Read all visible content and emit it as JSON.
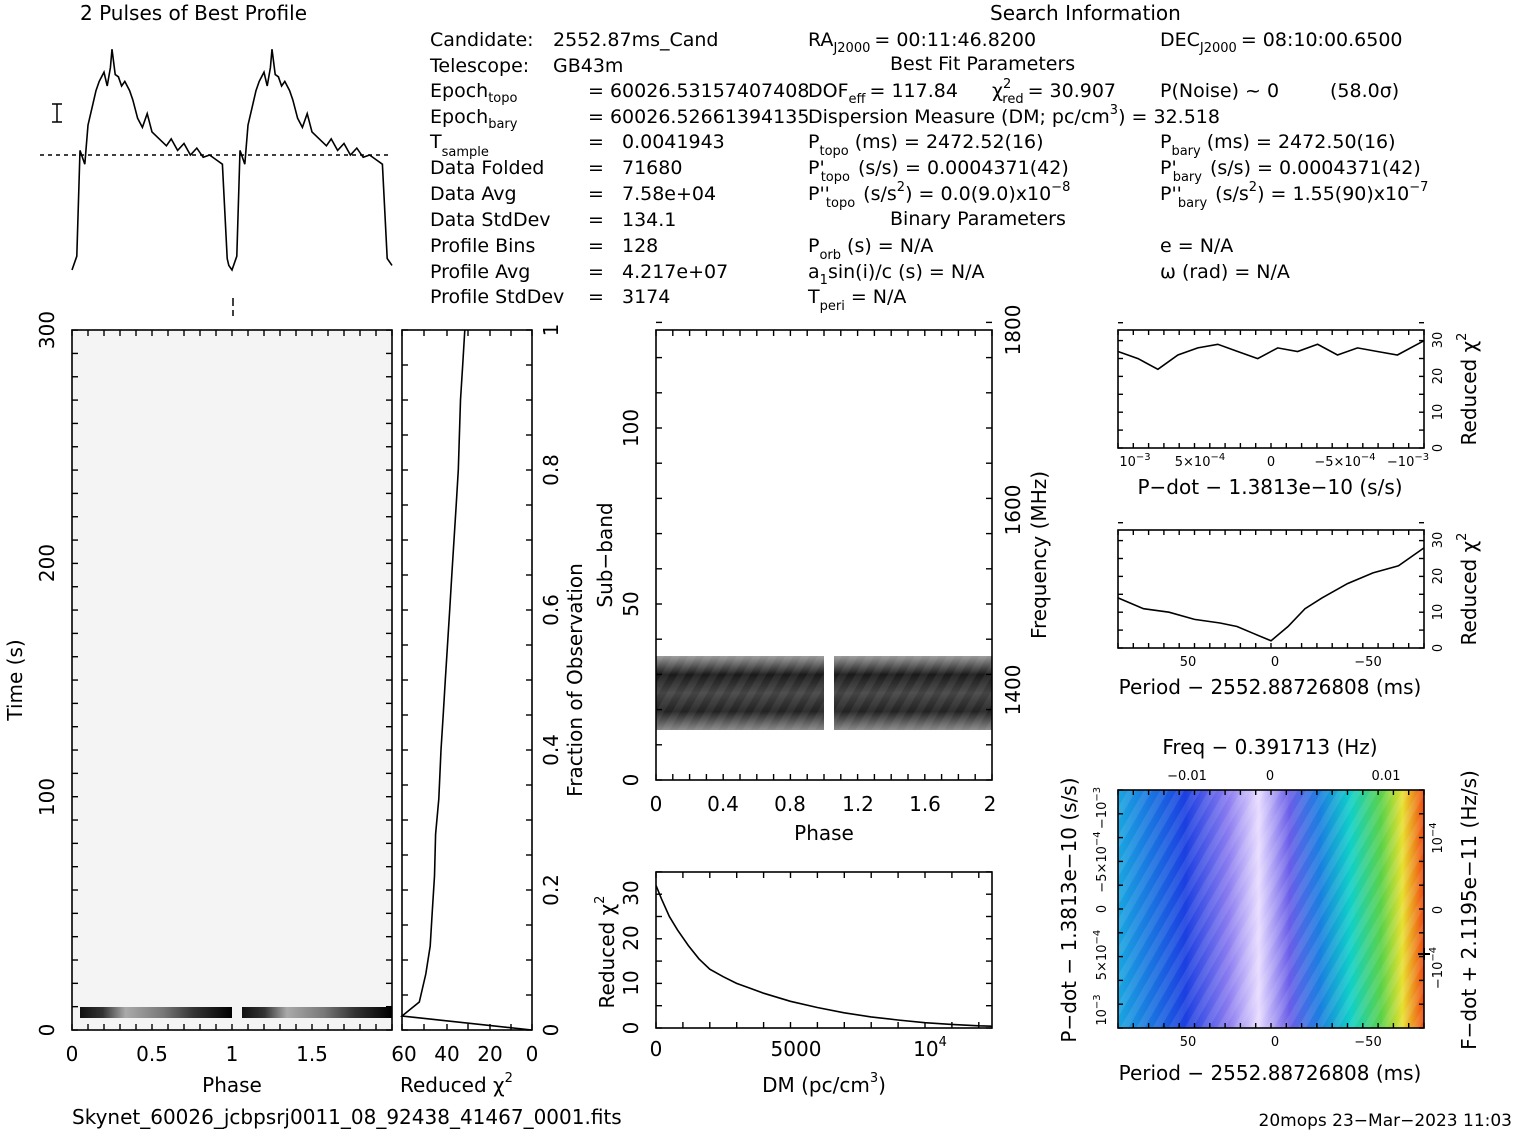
{
  "title_profile": "2 Pulses of Best Profile",
  "title_search": "Search Information",
  "footer_file": "Skynet_60026_jcbpsrj0011_08_92438_41467_0001.fits",
  "footer_stamp": "20mops 23−Mar−2023 11:03",
  "info": {
    "candidate": {
      "label": "Candidate:",
      "value": "2552.87ms_Cand"
    },
    "telescope": {
      "label": "Telescope:",
      "value": "GB43m"
    },
    "epoch_topo": {
      "label": "Epoch",
      "sub": "topo",
      "value": "= 60026.53157407408"
    },
    "epoch_bary": {
      "label": "Epoch",
      "sub": "bary",
      "value": "= 60026.52661394135"
    },
    "t_sample": {
      "label": "T",
      "sub": "sample",
      "value": "0.0041943"
    },
    "data_folded": {
      "label": "Data Folded",
      "value": "71680"
    },
    "data_avg": {
      "label": "Data Avg",
      "value": "7.58e+04"
    },
    "data_stddev": {
      "label": "Data StdDev",
      "value": "134.1"
    },
    "profile_bins": {
      "label": "Profile Bins",
      "value": "128"
    },
    "profile_avg": {
      "label": "Profile Avg",
      "value": "4.217e+07"
    },
    "profile_stddev": {
      "label": "Profile StdDev",
      "value": "3174"
    },
    "eq": "="
  },
  "search": {
    "ra_label": "RA",
    "ra_sub": "J2000",
    "ra_value": "= 00:11:46.8200",
    "dec_label": "DEC",
    "dec_sub": "J2000",
    "dec_value": "= 08:10:00.6500",
    "best_fit_title": "Best Fit Parameters",
    "dof_label": "DOF",
    "dof_sub": "eff",
    "dof_value": "= 117.84",
    "chi_label": "χ",
    "chi_sup": "2",
    "chi_sub": "red",
    "chi_value": "= 30.907",
    "pnoise": "P(Noise) ~ 0",
    "sigma": "(58.0σ)",
    "dm_label": "Dispersion Measure (DM; pc/cm",
    "dm_sup": "3",
    "dm_value": ") = 32.518",
    "ptopo_label": "P",
    "ptopo_sub": "topo",
    "ptopo_value": "(ms) =  2472.52(16)",
    "pbary_label": "P",
    "pbary_sub": "bary",
    "pbary_value": "(ms) =  2472.50(16)",
    "pdtopo_label": "P'",
    "pdtopo_sub": "topo",
    "pdtopo_value": "(s/s) =  0.0004371(42)",
    "pdbary_label": "P'",
    "pdbary_sub": "bary",
    "pdbary_value": "(s/s) =  0.0004371(42)",
    "pddtopo_label": "P''",
    "pddtopo_sub": "topo",
    "pddtopo_value": "(s/s",
    "pddtopo_sup": "2",
    "pddtopo_value2": ") = 0.0(9.0)x10",
    "pddtopo_exp": "−8",
    "pddbary_label": "P''",
    "pddbary_sub": "bary",
    "pddbary_value": "(s/s",
    "pddbary_sup": "2",
    "pddbary_value2": ") =  1.55(90)x10",
    "pddbary_exp": "−7",
    "binary_title": "Binary Parameters",
    "porb_label": "P",
    "porb_sub": "orb",
    "porb_value": "(s) = N/A",
    "e_value": "e = N/A",
    "asini_label": "a",
    "asini_sub": "1",
    "asini_value": "sin(i)/c (s) = N/A",
    "omega_value": "ω (rad) = N/A",
    "tperi_label": "T",
    "tperi_sub": "peri",
    "tperi_value": "= N/A"
  },
  "chart_data": [
    {
      "type": "line",
      "name": "profile",
      "title": "2 Pulses of Best Profile",
      "x": [
        0.0,
        0.03,
        0.05,
        0.08,
        0.1,
        0.13,
        0.15,
        0.17,
        0.2,
        0.22,
        0.24,
        0.25,
        0.27,
        0.29,
        0.31,
        0.33,
        0.36,
        0.38,
        0.41,
        0.44,
        0.47,
        0.5,
        0.53,
        0.56,
        0.59,
        0.62,
        0.66,
        0.7,
        0.74,
        0.78,
        0.82,
        0.86,
        0.9,
        0.94,
        0.97,
        0.98,
        1.0,
        1.03,
        1.05,
        1.08,
        1.1,
        1.13,
        1.15,
        1.17,
        1.2,
        1.22,
        1.24,
        1.25,
        1.27,
        1.29,
        1.31,
        1.33,
        1.36,
        1.38,
        1.41,
        1.44,
        1.47,
        1.5,
        1.53,
        1.56,
        1.59,
        1.62,
        1.66,
        1.7,
        1.74,
        1.78,
        1.82,
        1.86,
        1.9,
        1.94,
        1.97,
        2.0
      ],
      "y": [
        0.0,
        0.06,
        0.52,
        0.46,
        0.63,
        0.72,
        0.78,
        0.82,
        0.86,
        0.8,
        0.88,
        0.96,
        0.85,
        0.84,
        0.8,
        0.82,
        0.78,
        0.74,
        0.66,
        0.62,
        0.68,
        0.6,
        0.58,
        0.56,
        0.54,
        0.57,
        0.52,
        0.55,
        0.5,
        0.53,
        0.49,
        0.5,
        0.48,
        0.46,
        0.05,
        0.02,
        0.0,
        0.06,
        0.52,
        0.46,
        0.63,
        0.72,
        0.78,
        0.82,
        0.86,
        0.8,
        0.88,
        0.96,
        0.85,
        0.84,
        0.8,
        0.82,
        0.78,
        0.74,
        0.66,
        0.62,
        0.68,
        0.6,
        0.58,
        0.56,
        0.54,
        0.57,
        0.52,
        0.55,
        0.5,
        0.53,
        0.49,
        0.5,
        0.48,
        0.46,
        0.05,
        0.02
      ],
      "baseline": 0.5
    },
    {
      "type": "heatmap",
      "name": "time-phase",
      "xlabel": "Phase",
      "ylabel": "Time (s)",
      "xlim": [
        0,
        2
      ],
      "ylim": [
        0,
        300
      ],
      "xticks": [
        "0",
        "0.5",
        "1",
        "1.5"
      ],
      "yticks": [
        "0",
        "100",
        "200",
        "300"
      ]
    },
    {
      "type": "line",
      "name": "chi2-vs-time",
      "xlabel": "Reduced χ",
      "xlabel_sup": "2",
      "ylabel": "Fraction of Observation",
      "xlim": [
        60,
        0
      ],
      "ylim": [
        0,
        1
      ],
      "xticks": [
        "60",
        "40",
        "20",
        "0"
      ],
      "yticks": [
        "0",
        "0.2",
        "0.4",
        "0.6",
        "0.8",
        "1"
      ],
      "x": [
        0,
        60,
        52,
        49,
        47,
        46,
        45,
        44.5,
        43,
        42,
        41,
        40,
        39,
        38,
        37,
        36,
        35,
        34,
        33.5,
        33,
        32,
        31
      ],
      "y": [
        0.0,
        0.02,
        0.04,
        0.08,
        0.12,
        0.17,
        0.22,
        0.28,
        0.33,
        0.4,
        0.45,
        0.5,
        0.55,
        0.6,
        0.65,
        0.7,
        0.75,
        0.8,
        0.85,
        0.9,
        0.95,
        1.0
      ]
    },
    {
      "type": "heatmap",
      "name": "subband-phase",
      "xlabel": "Phase",
      "ylabel": "Sub−band",
      "ylabel_right": "Frequency (MHz)",
      "xlim": [
        0,
        2
      ],
      "ylim": [
        0,
        128
      ],
      "xticks": [
        "0",
        "0.4",
        "0.8",
        "1.2",
        "1.6",
        "2"
      ],
      "yticks": [
        "0",
        "50",
        "100"
      ],
      "freq_ticks": [
        "1400",
        "1600",
        "1800"
      ],
      "freq_values": [
        1400,
        1600,
        1800
      ],
      "band_subbands": [
        15,
        35
      ]
    },
    {
      "type": "line",
      "name": "chi2-vs-dm",
      "xlabel": "DM (pc/cm",
      "xlabel_sup": "3",
      "xlabel_end": ")",
      "ylabel": "Reduced χ",
      "ylabel_sup": "2",
      "xlim": [
        0,
        12500
      ],
      "ylim": [
        0,
        35
      ],
      "xticks": [
        "0",
        "5000",
        "10"
      ],
      "xtick_exp": "4",
      "yticks": [
        "0",
        "10",
        "20",
        "30"
      ],
      "x": [
        0,
        200,
        500,
        800,
        1200,
        1600,
        2000,
        2500,
        3000,
        3500,
        4000,
        5000,
        6000,
        7000,
        8000,
        9000,
        10000,
        11000,
        12000,
        12500
      ],
      "y": [
        32,
        29,
        25,
        22,
        18.5,
        15.5,
        13.2,
        11.5,
        10,
        8.9,
        7.8,
        6,
        4.6,
        3.4,
        2.5,
        1.8,
        1.2,
        0.8,
        0.5,
        0.4
      ]
    },
    {
      "type": "line",
      "name": "chi2-vs-pdot",
      "xlabel": "P−dot − 1.3813e−10 (s/s)",
      "ylabel": "Reduced χ",
      "ylabel_sup": "2",
      "xlim": [
        0.00115,
        -0.00115
      ],
      "ylim": [
        0,
        33
      ],
      "xticks": [
        "10",
        "5×10",
        "0",
        "−5×10",
        "−10"
      ],
      "xtick_exps": [
        "−3",
        "−4",
        "",
        "−4",
        "−3"
      ],
      "yticks": [
        "0",
        "10",
        "20",
        "30"
      ],
      "x": [
        0.00115,
        0.001,
        0.00085,
        0.0007,
        0.00055,
        0.0004,
        0.00025,
        0.0001,
        -5e-05,
        -0.0002,
        -0.00035,
        -0.0005,
        -0.00065,
        -0.0008,
        -0.00095,
        -0.00115
      ],
      "y": [
        27,
        25,
        22,
        26,
        28,
        29,
        27,
        25,
        28,
        27,
        29,
        26,
        28,
        27,
        26,
        30
      ]
    },
    {
      "type": "line",
      "name": "chi2-vs-period",
      "xlabel": "Period − 2552.88726808 (ms)",
      "ylabel": "Reduced χ",
      "ylabel_sup": "2",
      "xlim": [
        90,
        -90
      ],
      "ylim": [
        0,
        33
      ],
      "xticks": [
        "50",
        "0",
        "−50"
      ],
      "yticks": [
        "0",
        "10",
        "20",
        "30"
      ],
      "x": [
        90,
        75,
        60,
        45,
        30,
        20,
        10,
        0,
        -10,
        -20,
        -30,
        -45,
        -60,
        -75,
        -90
      ],
      "y": [
        14,
        11,
        10,
        8,
        7,
        6,
        4,
        2,
        6,
        11,
        14,
        18,
        21,
        23,
        28
      ]
    },
    {
      "type": "heatmap",
      "name": "period-pdot",
      "xlabel": "Period − 2552.88726808 (ms)",
      "xlabel_top": "Freq − 0.391713 (Hz)",
      "ylabel": "P−dot − 1.3813e−10 (s/s)",
      "ylabel_right": "F−dot + 2.1195e−11 (Hz/s)",
      "xticks": [
        "50",
        "0",
        "−50"
      ],
      "xticks_top": [
        "−0.01",
        "0",
        "0.01"
      ],
      "yticks": [
        "10",
        "5×10",
        "0",
        "−5×10",
        "−10"
      ],
      "ytick_exps": [
        "−3",
        "−4",
        "",
        "−4",
        "−3"
      ],
      "yticks_right": [
        "−10",
        "0",
        "10"
      ],
      "ytick_right_exps": [
        "−4",
        "",
        "−4"
      ]
    }
  ]
}
